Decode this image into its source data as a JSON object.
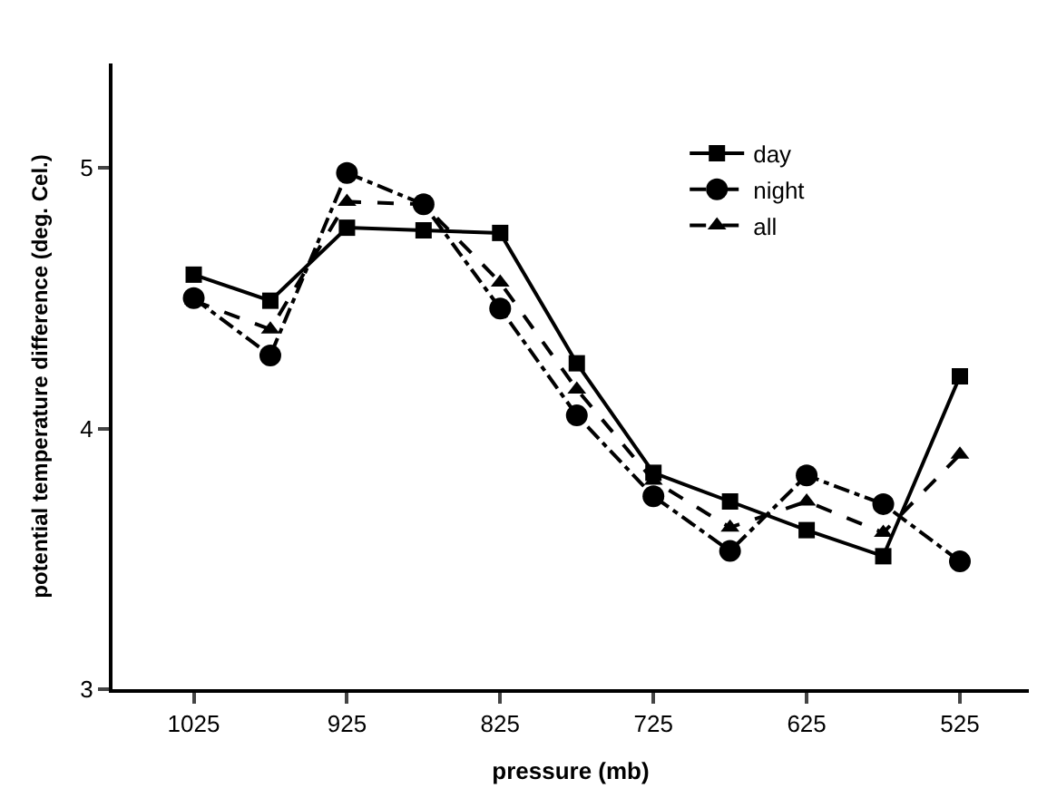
{
  "chart_data": {
    "type": "line",
    "xlabel": "pressure (mb)",
    "ylabel": "potential temperature difference (deg. Cel.)",
    "x": [
      1025,
      975,
      925,
      875,
      825,
      775,
      725,
      675,
      625,
      575,
      525
    ],
    "series": [
      {
        "name": "day",
        "color": "#000000",
        "marker": "square",
        "line_style": "solid",
        "values": [
          4.59,
          4.49,
          4.77,
          4.76,
          4.75,
          4.25,
          3.83,
          3.72,
          3.61,
          3.51,
          4.2
        ]
      },
      {
        "name": "night",
        "color": "#000000",
        "marker": "circle",
        "line_style": "dashdot",
        "values": [
          4.5,
          4.28,
          4.98,
          4.86,
          4.46,
          4.05,
          3.74,
          3.53,
          3.82,
          3.71,
          3.49
        ]
      },
      {
        "name": "all",
        "color": "#000000",
        "marker": "triangle",
        "line_style": "dashed",
        "values": [
          4.49,
          4.38,
          4.87,
          4.86,
          4.56,
          4.15,
          3.8,
          3.62,
          3.72,
          3.6,
          3.9
        ]
      }
    ],
    "xlim": [
      1078,
      480
    ],
    "xticks": [
      1025,
      925,
      825,
      725,
      625,
      525
    ],
    "ylim": [
      3,
      5.4
    ],
    "yticks": [
      3,
      4,
      5
    ],
    "legend": "top right"
  }
}
